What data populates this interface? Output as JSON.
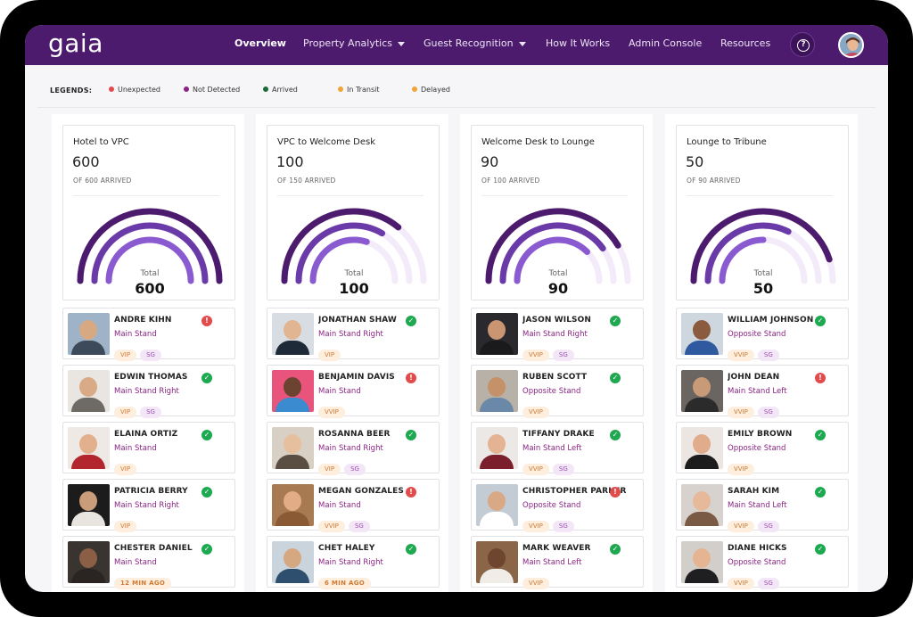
{
  "app": {
    "logo": "gaia"
  },
  "nav": {
    "items": [
      {
        "label": "Overview",
        "active": true,
        "dropdown": false
      },
      {
        "label": "Property Analytics",
        "active": false,
        "dropdown": true
      },
      {
        "label": "Guest Recognition",
        "active": false,
        "dropdown": true
      },
      {
        "label": "How It Works",
        "active": false,
        "dropdown": false
      },
      {
        "label": "Admin Console",
        "active": false,
        "dropdown": false
      },
      {
        "label": "Resources",
        "active": false,
        "dropdown": false
      }
    ],
    "help_icon": "?"
  },
  "legend": {
    "title": "LEGENDS:",
    "items": [
      {
        "label": "Unexpected",
        "color": "#e24b4b"
      },
      {
        "label": "Not Detected",
        "color": "#8a2383"
      },
      {
        "label": "Arrived",
        "color": "#1b6b3a"
      },
      {
        "label": "In Transit",
        "color": "#f2a33a"
      },
      {
        "label": "Delayed",
        "color": "#f2a33a"
      }
    ]
  },
  "columns": [
    {
      "title": "Hotel to VPC",
      "count": "600",
      "subtitle": "OF 600 ARRIVED",
      "total_label": "Total",
      "total_value": "600",
      "gauge": [
        1.0,
        1.0,
        1.0
      ],
      "guests": [
        {
          "name": "ANDRE KIHN",
          "location": "Main Stand",
          "tags": [
            "VIP",
            "SG"
          ],
          "status": "alert",
          "photo": {
            "bg": "#9fb3c8",
            "skin": "#d7a983",
            "shirt": "#3d4a5a"
          }
        },
        {
          "name": "EDWIN THOMAS",
          "location": "Main Stand Right",
          "tags": [
            "VIP",
            "SG"
          ],
          "status": "ok",
          "photo": {
            "bg": "#e9e6e2",
            "skin": "#d9aa86",
            "shirt": "#6e6a66"
          }
        },
        {
          "name": "ELAINA ORTIZ",
          "location": "Main Stand",
          "tags": [
            "VIP"
          ],
          "status": "ok",
          "photo": {
            "bg": "#efe9e5",
            "skin": "#e3b08d",
            "shirt": "#b3262d"
          }
        },
        {
          "name": "PATRICIA BERRY",
          "location": "Main Stand Right",
          "tags": [
            "VIP"
          ],
          "status": "ok",
          "photo": {
            "bg": "#1c1c1c",
            "skin": "#c99c7a",
            "shirt": "#e8e4e0"
          }
        },
        {
          "name": "CHESTER DANIEL",
          "location": "Main Stand",
          "tags": [
            "12 MIN AGO"
          ],
          "status": "ok",
          "photo": {
            "bg": "#3a3431",
            "skin": "#8a5f45",
            "shirt": "#2a2523"
          }
        }
      ]
    },
    {
      "title": "VPC to Welcome Desk",
      "count": "100",
      "subtitle": "OF 150 ARRIVED",
      "total_label": "Total",
      "total_value": "100",
      "gauge": [
        0.72,
        0.67,
        0.6
      ],
      "guests": [
        {
          "name": "JONATHAN SHAW",
          "location": "Main Stand Right",
          "tags": [
            "VIP"
          ],
          "status": "ok",
          "photo": {
            "bg": "#d7dde3",
            "skin": "#e1b592",
            "shirt": "#1f2a38"
          }
        },
        {
          "name": "BENJAMIN DAVIS",
          "location": "Main Stand",
          "tags": [
            "VVIP"
          ],
          "status": "alert",
          "photo": {
            "bg": "#e8547c",
            "skin": "#6b4330",
            "shirt": "#3b8bd0"
          }
        },
        {
          "name": "ROSANNA BEER",
          "location": "Main Stand Right",
          "tags": [
            "VIP",
            "SG"
          ],
          "status": "ok",
          "photo": {
            "bg": "#d8d0c4",
            "skin": "#e6bf9e",
            "shirt": "#5a4d42"
          }
        },
        {
          "name": "MEGAN GONZALES",
          "location": "Main Stand",
          "tags": [
            "VVIP",
            "SG"
          ],
          "status": "alert",
          "photo": {
            "bg": "#a87a52",
            "skin": "#e2ad86",
            "shirt": "#8a5a35"
          }
        },
        {
          "name": "CHET HALEY",
          "location": "Main Stand Right",
          "tags": [
            "6 MIN AGO"
          ],
          "status": "ok",
          "photo": {
            "bg": "#c9d4dc",
            "skin": "#d6a882",
            "shirt": "#2e4f6d"
          }
        }
      ]
    },
    {
      "title": "Welcome Desk to Lounge",
      "count": "90",
      "subtitle": "OF 100 ARRIVED",
      "total_label": "Total",
      "total_value": "90",
      "gauge": [
        0.83,
        0.8,
        0.75
      ],
      "guests": [
        {
          "name": "JASON WILSON",
          "location": "Main Stand Right",
          "tags": [
            "VVIP",
            "SG"
          ],
          "status": "ok",
          "photo": {
            "bg": "#2a2a2e",
            "skin": "#c99573",
            "shirt": "#1a1a1c"
          }
        },
        {
          "name": "RUBEN SCOTT",
          "location": "Opposite Stand",
          "tags": [
            "VVIP"
          ],
          "status": "ok",
          "photo": {
            "bg": "#b7b1a8",
            "skin": "#c59169",
            "shirt": "#6a88a8"
          }
        },
        {
          "name": "TIFFANY DRAKE",
          "location": "Main Stand Left",
          "tags": [
            "VVIP",
            "SG"
          ],
          "status": "ok",
          "photo": {
            "bg": "#ece8e6",
            "skin": "#e3b394",
            "shirt": "#7a1f2b"
          }
        },
        {
          "name": "CHRISTOPHER PARKER",
          "location": "Opposite Stand",
          "tags": [
            "VVIP",
            "SG"
          ],
          "status": "alert",
          "photo": {
            "bg": "#c3ccd4",
            "skin": "#d9a885",
            "shirt": "#ffffff"
          }
        },
        {
          "name": "MARK WEAVER",
          "location": "Main Stand Left",
          "tags": [
            "VVIP"
          ],
          "status": "ok",
          "photo": {
            "bg": "#8a6547",
            "skin": "#6e452e",
            "shirt": "#f0ece8"
          }
        }
      ]
    },
    {
      "title": "Lounge to Tribune",
      "count": "50",
      "subtitle": "OF 90 ARRIVED",
      "total_label": "Total",
      "total_value": "50",
      "gauge": [
        0.9,
        0.65,
        0.5
      ],
      "guests": [
        {
          "name": "WILLIAM JOHNSON",
          "location": "Opposite Stand",
          "tags": [
            "VVIP",
            "SG"
          ],
          "status": "ok",
          "photo": {
            "bg": "#cfd7de",
            "skin": "#8a5b3e",
            "shirt": "#2f5aa0"
          }
        },
        {
          "name": "JOHN DEAN",
          "location": "Main Stand Left",
          "tags": [
            "VVIP",
            "SG"
          ],
          "status": "alert",
          "photo": {
            "bg": "#6a6560",
            "skin": "#c99a78",
            "shirt": "#2b2b2b"
          }
        },
        {
          "name": "EMILY BROWN",
          "location": "Opposite Stand",
          "tags": [
            "VVIP"
          ],
          "status": "ok",
          "photo": {
            "bg": "#ece6e3",
            "skin": "#e0ac8c",
            "shirt": "#1c1c1c"
          }
        },
        {
          "name": "SARAH KIM",
          "location": "Main Stand Left",
          "tags": [
            "VVIP",
            "SG"
          ],
          "status": "ok",
          "photo": {
            "bg": "#d7d2cd",
            "skin": "#e6b99b",
            "shirt": "#7a5a45"
          }
        },
        {
          "name": "DIANE HICKS",
          "location": "Opposite Stand",
          "tags": [
            "VVIP",
            "SG"
          ],
          "status": "ok",
          "photo": {
            "bg": "#d2cfcb",
            "skin": "#e4b493",
            "shirt": "#1f1f22"
          }
        }
      ]
    }
  ]
}
